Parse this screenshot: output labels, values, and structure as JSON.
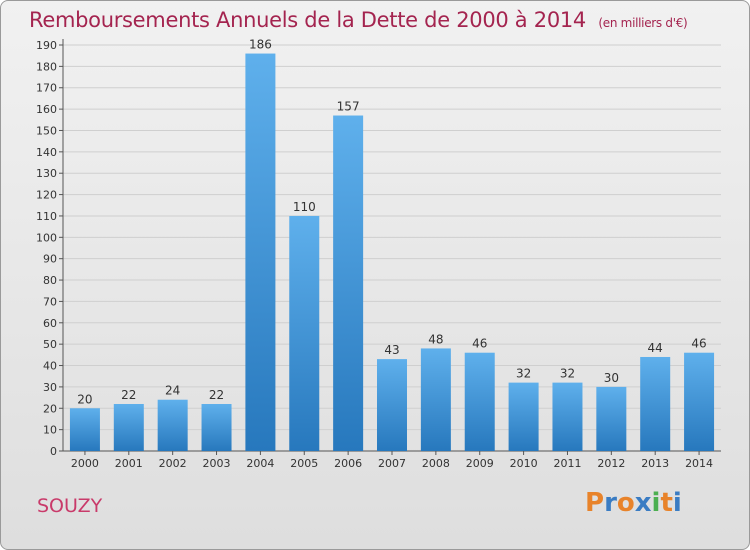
{
  "header": {
    "title": "Remboursements Annuels de la Dette de 2000 à 2014",
    "subtitle": "(en milliers d'€)"
  },
  "footer": {
    "place": "SOUZY",
    "logo": "Proxiti"
  },
  "colors": {
    "title": "#a4244f",
    "bar_light": "#5fb0ec",
    "bar_dark": "#2778bd",
    "logo_letters": [
      "#e8832a",
      "#3a7cc3",
      "#e8832a",
      "#3a7cc3",
      "#4caf50",
      "#e8832a",
      "#3a7cc3"
    ]
  },
  "chart_data": {
    "type": "bar",
    "categories": [
      "2000",
      "2001",
      "2002",
      "2003",
      "2004",
      "2005",
      "2006",
      "2007",
      "2008",
      "2009",
      "2010",
      "2011",
      "2012",
      "2013",
      "2014"
    ],
    "values": [
      20,
      22,
      24,
      22,
      186,
      110,
      157,
      43,
      48,
      46,
      32,
      32,
      30,
      44,
      46
    ],
    "ylim": [
      0,
      190
    ],
    "yticks": [
      0,
      10,
      20,
      30,
      40,
      50,
      60,
      70,
      80,
      90,
      100,
      110,
      120,
      130,
      140,
      150,
      160,
      170,
      180,
      190
    ],
    "grid": true,
    "data_labels": true
  }
}
